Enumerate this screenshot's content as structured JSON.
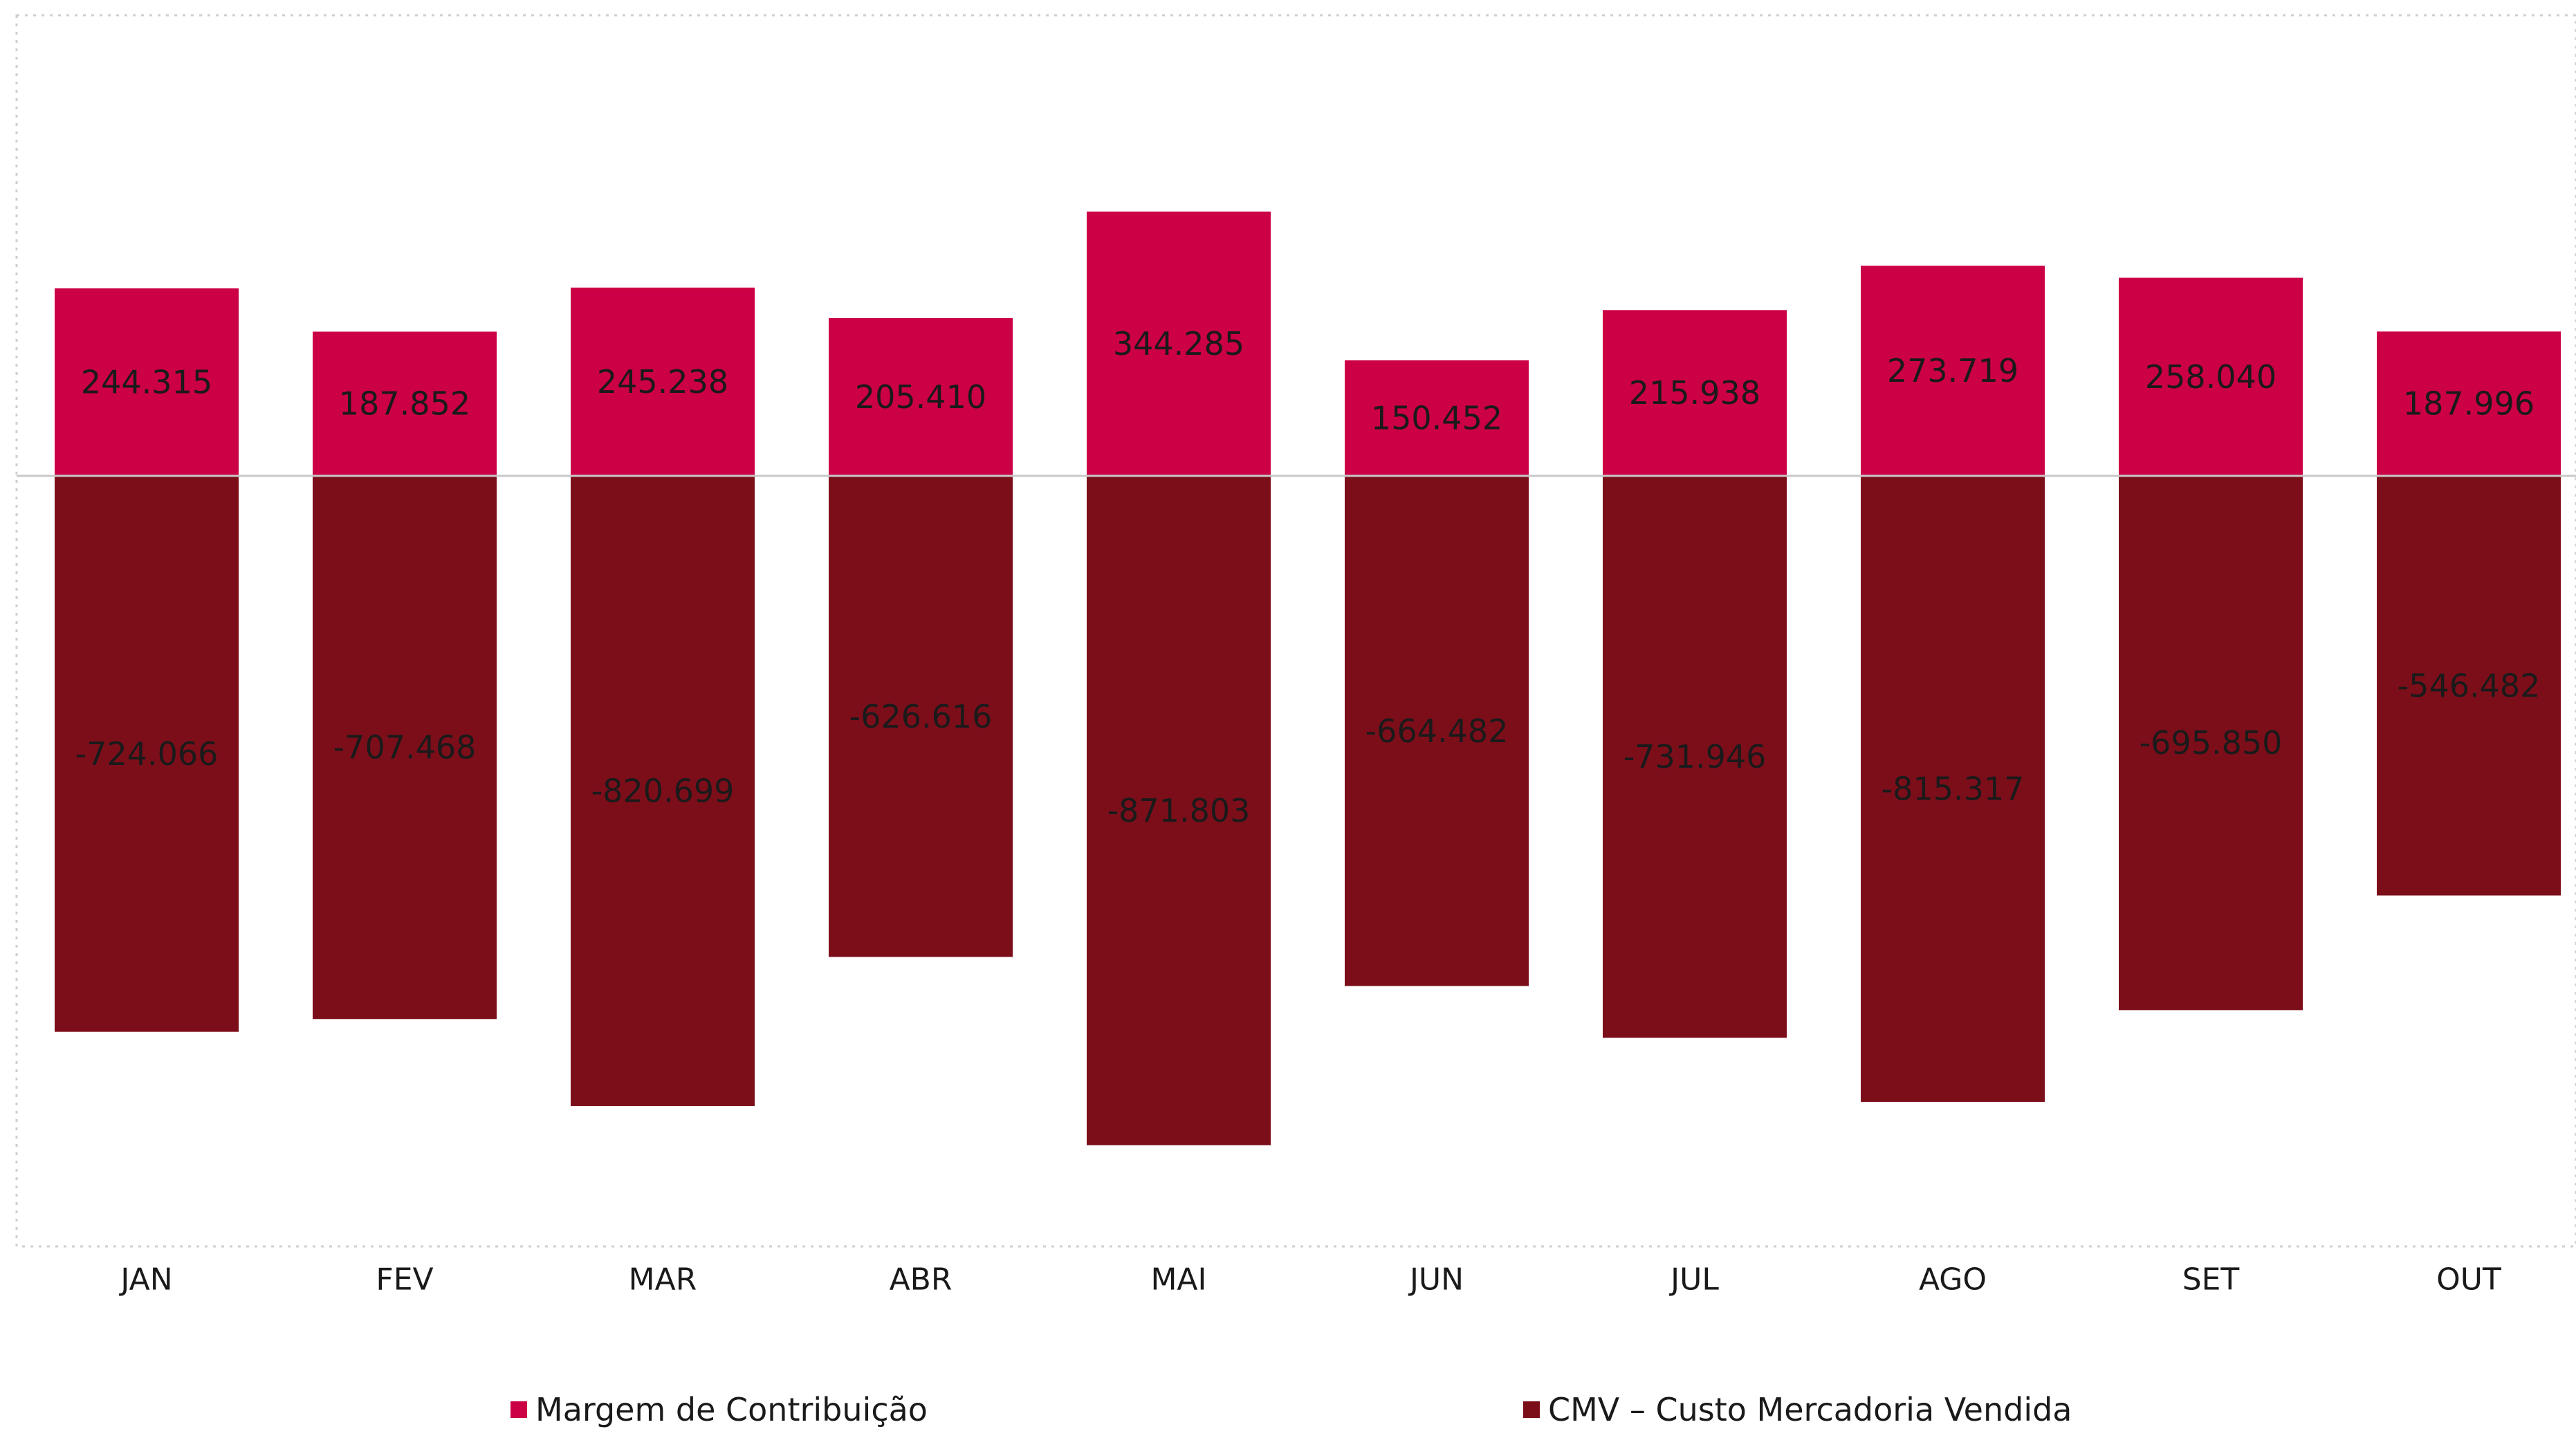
{
  "colors": {
    "positive": "#cc0044",
    "negative": "#7c0e1a",
    "zero_line": "#c8c8c8",
    "frame": "#cfcfcf"
  },
  "chart_data": {
    "type": "bar",
    "stacked": true,
    "categories": [
      "JAN",
      "FEV",
      "MAR",
      "ABR",
      "MAI",
      "JUN",
      "JUL",
      "AGO",
      "SET",
      "OUT"
    ],
    "series": [
      {
        "name": "Margem de Contribuição",
        "values": [
          244315,
          187852,
          245238,
          205410,
          344285,
          150452,
          215938,
          273719,
          258040,
          187996
        ],
        "labels": [
          "244.315",
          "187.852",
          "245.238",
          "205.410",
          "344.285",
          "150.452",
          "215.938",
          "273.719",
          "258.040",
          "187.996"
        ]
      },
      {
        "name": "CMV – Custo Mercadoria Vendida",
        "values": [
          -724066,
          -707468,
          -820699,
          -626616,
          -871803,
          -664482,
          -731946,
          -815317,
          -695850,
          -546482
        ],
        "labels": [
          "-724.066",
          "-707.468",
          "-820.699",
          "-626.616",
          "-871.803",
          "-664.482",
          "-731.946",
          "-815.317",
          "-695.850",
          "-546.482"
        ]
      }
    ],
    "ylim": [
      -1000000,
      600000
    ],
    "grid": false,
    "legend": "bottom"
  }
}
